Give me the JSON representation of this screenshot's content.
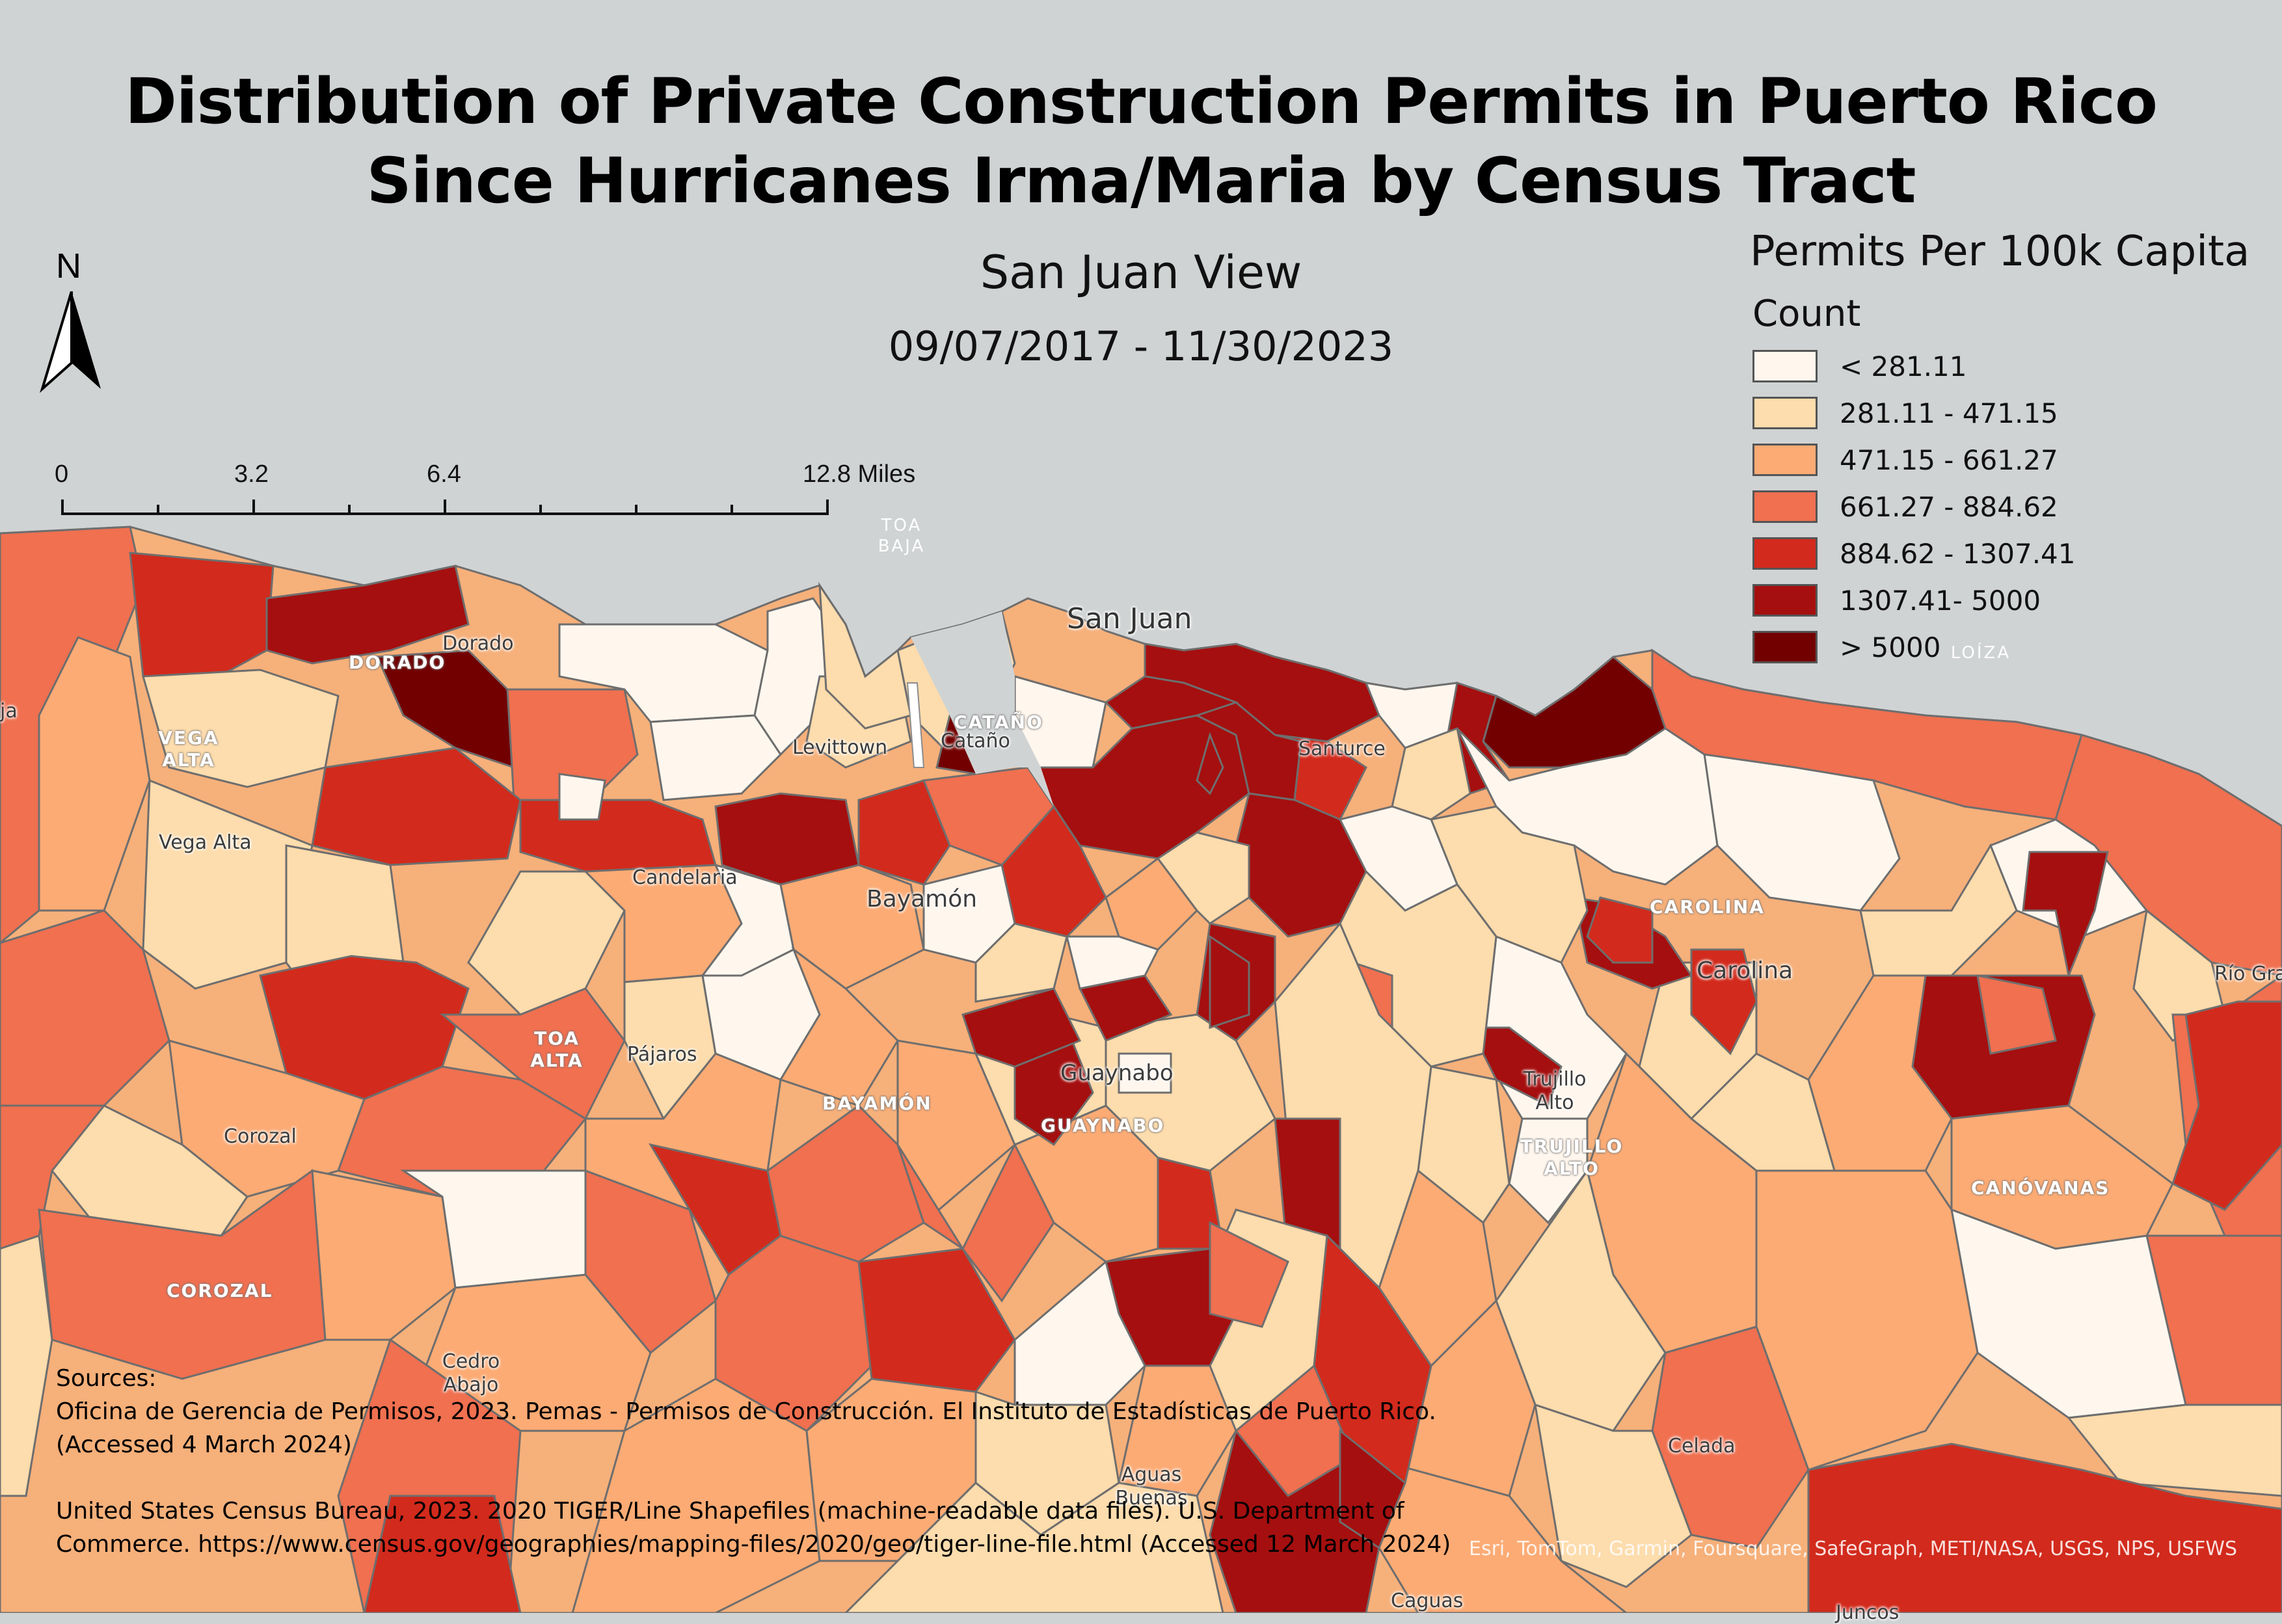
{
  "title": {
    "line1": "Distribution of Private Construction Permits in Puerto Rico",
    "line2": "Since Hurricanes Irma/Maria by Census Tract"
  },
  "subtitle": {
    "view": "San Juan View",
    "date_range": "09/07/2017 - 11/30/2023"
  },
  "north_arrow": {
    "label": "N",
    "icon": "north-arrow-icon"
  },
  "scale_bar": {
    "ticks": [
      "0",
      "3.2",
      "6.4",
      "12.8 Miles"
    ]
  },
  "legend": {
    "title": "Permits Per 100k Capita",
    "subtitle": "Count",
    "classes": [
      {
        "label": "< 281.11",
        "color": "#fff7ee"
      },
      {
        "label": "281.11 - 471.15",
        "color": "#fddcad"
      },
      {
        "label": "471.15 - 661.27",
        "color": "#fcab74"
      },
      {
        "label": "661.27 - 884.62",
        "color": "#f07050"
      },
      {
        "label": "884.62 - 1307.41",
        "color": "#d22a1c"
      },
      {
        "label": "1307.41- 5000",
        "color": "#a50f0f"
      },
      {
        "label": "> 5000",
        "color": "#730000"
      }
    ]
  },
  "places": [
    "Dorado",
    "Levittown",
    "Cataño",
    "San Juan",
    "Santurce",
    "Vega Alta",
    "Candelaria",
    "Bayamón",
    "Carolina",
    "Río Grande",
    "Pájaros",
    "Guaynabo",
    "Trujillo Alto",
    "Corozal",
    "Cedro Abajo",
    "Aguas Buenas",
    "Celada",
    "Caguas",
    "Juncos",
    "ja"
  ],
  "municipalities": [
    "DORADO",
    "VEGA ALTA",
    "CATAÑO",
    "TOA BAJA",
    "LOÍZA",
    "CAROLINA",
    "TOA ALTA",
    "BAYAMÓN",
    "GUAYNABO",
    "TRUJILLO ALTO",
    "CANÓVANAS",
    "COROZAL"
  ],
  "sources": {
    "heading": "Sources:",
    "ref1": "Oficina de Gerencia de Permisos, 2023. Pemas - Permisos de Construcción. El Instituto de Estadísticas de Puerto Rico. (Accessed 4 March 2024)",
    "ref2": "United States Census Bureau, 2023. 2020 TIGER/Line Shapefiles (machine-readable data files). U.S. Department of Commerce. https://www.census.gov/geographies/mapping-files/2020/geo/tiger-line-file.html (Accessed 12 March 2024)"
  },
  "attribution": "Esri, TomTom, Garmin, Foursquare, SafeGraph, METI/NASA, USGS, NPS, USFWS"
}
